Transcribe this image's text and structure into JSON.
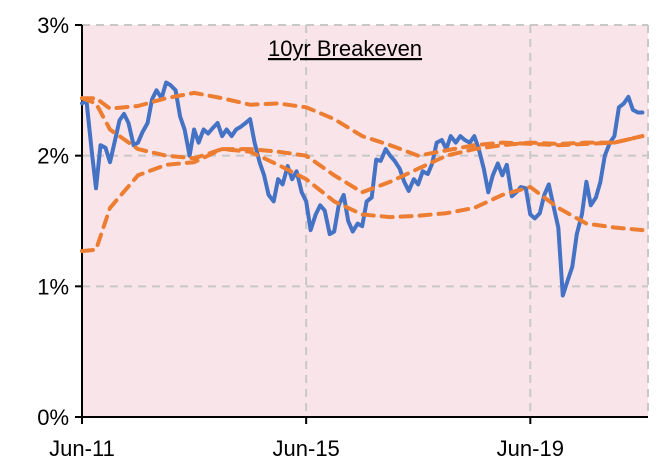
{
  "chart_data": {
    "type": "line",
    "title": "10yr Breakeven",
    "xlabel": "",
    "ylabel": "",
    "x_tick_labels": [
      "Jun-11",
      "Jun-15",
      "Jun-19"
    ],
    "x_ticks": [
      2011.5,
      2015.5,
      2019.5
    ],
    "x_range": [
      2011.5,
      2021.6
    ],
    "y_tick_labels": [
      "0%",
      "1%",
      "2%",
      "3%"
    ],
    "y_ticks": [
      0,
      1,
      2,
      3
    ],
    "ylim": [
      0,
      3
    ],
    "y_unit": "%",
    "grid": true,
    "legend": "none",
    "colors": {
      "background": "#F9E4EA",
      "breakeven": "#4472C4",
      "bands": "#ED7D31",
      "grid": "#C8C8C8",
      "axis": "#000000"
    },
    "series": [
      {
        "x": [
          2011.5,
          2011.58,
          2011.67,
          2011.75,
          2011.83,
          2011.92,
          2012.0,
          2012.08,
          2012.17,
          2012.25,
          2012.33,
          2012.42,
          2012.5,
          2012.58,
          2012.67,
          2012.75,
          2012.83,
          2012.92,
          2013.0,
          2013.08,
          2013.17,
          2013.25,
          2013.33,
          2013.42,
          2013.5,
          2013.58,
          2013.67,
          2013.75,
          2013.83,
          2013.92,
          2014.0,
          2014.08,
          2014.17,
          2014.25,
          2014.33,
          2014.42,
          2014.5,
          2014.58,
          2014.67,
          2014.75,
          2014.83,
          2014.92,
          2015.0,
          2015.08,
          2015.17,
          2015.25,
          2015.33,
          2015.42,
          2015.5,
          2015.58,
          2015.67,
          2015.75,
          2015.83,
          2015.92,
          2016.0,
          2016.08,
          2016.17,
          2016.25,
          2016.33,
          2016.42,
          2016.5,
          2016.58,
          2016.67,
          2016.75,
          2016.83,
          2016.92,
          2017.0,
          2017.08,
          2017.17,
          2017.25,
          2017.33,
          2017.42,
          2017.5,
          2017.58,
          2017.67,
          2017.75,
          2017.83,
          2017.92,
          2018.0,
          2018.08,
          2018.17,
          2018.25,
          2018.33,
          2018.42,
          2018.5,
          2018.58,
          2018.67,
          2018.75,
          2018.83,
          2018.92,
          2019.0,
          2019.08,
          2019.17,
          2019.25,
          2019.33,
          2019.42,
          2019.5,
          2019.58,
          2019.67,
          2019.75,
          2019.83,
          2019.92,
          2020.0,
          2020.08,
          2020.17,
          2020.25,
          2020.33,
          2020.42,
          2020.5,
          2020.58,
          2020.67,
          2020.75,
          2020.83,
          2020.92,
          2021.0,
          2021.08,
          2021.17,
          2021.25,
          2021.33,
          2021.42,
          2021.5
        ],
        "values": [
          2.4,
          2.42,
          2.05,
          1.75,
          2.08,
          2.06,
          1.95,
          2.1,
          2.27,
          2.32,
          2.25,
          2.08,
          2.1,
          2.18,
          2.25,
          2.43,
          2.5,
          2.44,
          2.56,
          2.54,
          2.5,
          2.3,
          2.2,
          2.0,
          2.2,
          2.1,
          2.2,
          2.17,
          2.21,
          2.25,
          2.15,
          2.2,
          2.15,
          2.2,
          2.22,
          2.25,
          2.28,
          2.1,
          1.95,
          1.85,
          1.7,
          1.65,
          1.82,
          1.78,
          1.92,
          1.82,
          1.88,
          1.72,
          1.65,
          1.43,
          1.55,
          1.62,
          1.58,
          1.4,
          1.42,
          1.62,
          1.7,
          1.5,
          1.42,
          1.48,
          1.46,
          1.65,
          1.68,
          1.97,
          1.96,
          2.05,
          2.0,
          1.96,
          1.9,
          1.8,
          1.73,
          1.82,
          1.78,
          1.88,
          1.86,
          1.94,
          2.1,
          2.12,
          2.05,
          2.15,
          2.1,
          2.15,
          2.12,
          2.1,
          2.15,
          2.05,
          1.9,
          1.72,
          1.85,
          1.94,
          1.85,
          1.93,
          1.69,
          1.72,
          1.76,
          1.75,
          1.55,
          1.52,
          1.56,
          1.7,
          1.78,
          1.6,
          1.45,
          0.93,
          1.05,
          1.15,
          1.4,
          1.55,
          1.8,
          1.62,
          1.68,
          1.8,
          2.0,
          2.1,
          2.15,
          2.37,
          2.4,
          2.45,
          2.35,
          2.33,
          2.33
        ]
      },
      {
        "x": [
          2011.5,
          2011.75,
          2012.0,
          2012.5,
          2013.0,
          2013.5,
          2014.0,
          2014.5,
          2015.0,
          2015.5,
          2016.0,
          2016.5,
          2017.0,
          2017.5,
          2018.0,
          2018.5,
          2019.0,
          2019.5,
          2020.0,
          2020.5,
          2021.0,
          2021.5
        ],
        "values": [
          2.44,
          2.44,
          2.36,
          2.38,
          2.44,
          2.48,
          2.44,
          2.39,
          2.4,
          2.37,
          2.28,
          2.15,
          2.08,
          2.0,
          2.04,
          2.08,
          2.1,
          2.09,
          2.08,
          2.09,
          2.1,
          2.15
        ]
      },
      {
        "x": [
          2011.5,
          2011.75,
          2012.0,
          2012.5,
          2013.0,
          2013.5,
          2014.0,
          2014.5,
          2015.0,
          2015.5,
          2016.0,
          2016.5,
          2017.0,
          2017.5,
          2018.0,
          2018.5,
          2019.0,
          2019.5,
          2020.0,
          2020.5,
          2021.0,
          2021.5
        ],
        "values": [
          2.44,
          2.4,
          2.2,
          2.05,
          2.0,
          1.98,
          2.05,
          2.03,
          1.93,
          1.82,
          1.65,
          1.55,
          1.53,
          1.54,
          1.56,
          1.6,
          1.7,
          1.76,
          1.6,
          1.48,
          1.45,
          1.43
        ]
      },
      {
        "x": [
          2011.5,
          2011.75,
          2012.0,
          2012.5,
          2013.0,
          2013.5,
          2014.0,
          2014.5,
          2015.0,
          2015.5,
          2016.0,
          2016.5,
          2017.0,
          2017.5,
          2018.0,
          2018.5,
          2019.0,
          2019.5,
          2020.0,
          2020.5,
          2021.0,
          2021.5
        ],
        "values": [
          1.27,
          1.28,
          1.6,
          1.85,
          1.93,
          1.95,
          2.05,
          2.05,
          2.03,
          2.0,
          1.85,
          1.72,
          1.8,
          1.9,
          2.0,
          2.05,
          2.08,
          2.1,
          2.09,
          2.1,
          2.1,
          2.15
        ]
      }
    ]
  }
}
